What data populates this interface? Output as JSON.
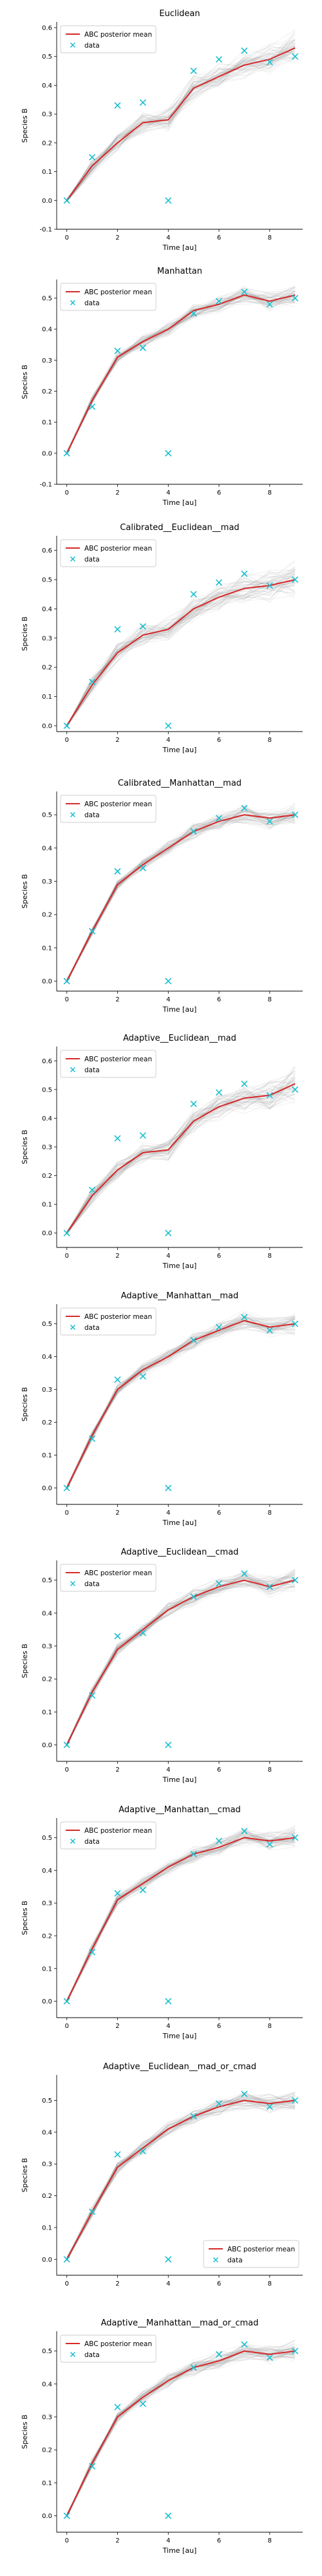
{
  "figure": {
    "background": "#ffffff",
    "colors": {
      "posterior_mean": "#d62728",
      "data": "#17becf",
      "samples": "#888888"
    }
  },
  "chart_data": [
    {
      "type": "line",
      "title": "Euclidean",
      "xlabel": "Time [au]",
      "ylabel": "Species B",
      "xlim": [
        -0.4,
        9.3
      ],
      "ylim": [
        -0.1,
        0.62
      ],
      "xticks": [
        0,
        2,
        4,
        6,
        8
      ],
      "yticks": [
        -0.1,
        0.0,
        0.1,
        0.2,
        0.3,
        0.4,
        0.5,
        0.6
      ],
      "legend": {
        "location": "upper left",
        "entries": [
          "ABC posterior mean",
          "data"
        ]
      },
      "x": [
        0,
        1,
        2,
        3,
        4,
        5,
        6,
        7,
        8,
        9
      ],
      "series": [
        {
          "name": "ABC posterior mean",
          "kind": "line",
          "values": [
            0.0,
            0.12,
            0.2,
            0.27,
            0.28,
            0.39,
            0.43,
            0.47,
            0.49,
            0.53
          ]
        },
        {
          "name": "data",
          "kind": "marker",
          "values": [
            0.0,
            0.15,
            0.33,
            0.34,
            0.0,
            0.45,
            0.49,
            0.52,
            0.48,
            0.5
          ]
        }
      ]
    },
    {
      "type": "line",
      "title": "Manhattan",
      "xlabel": "Time [au]",
      "ylabel": "Species B",
      "xlim": [
        -0.4,
        9.3
      ],
      "ylim": [
        -0.1,
        0.56
      ],
      "xticks": [
        0,
        2,
        4,
        6,
        8
      ],
      "yticks": [
        -0.1,
        0.0,
        0.1,
        0.2,
        0.3,
        0.4,
        0.5
      ],
      "legend": {
        "location": "upper left",
        "entries": [
          "ABC posterior mean",
          "data"
        ]
      },
      "x": [
        0,
        1,
        2,
        3,
        4,
        5,
        6,
        7,
        8,
        9
      ],
      "series": [
        {
          "name": "ABC posterior mean",
          "kind": "line",
          "values": [
            0.0,
            0.17,
            0.31,
            0.36,
            0.4,
            0.46,
            0.48,
            0.51,
            0.49,
            0.51
          ]
        },
        {
          "name": "data",
          "kind": "marker",
          "values": [
            0.0,
            0.15,
            0.33,
            0.34,
            0.0,
            0.45,
            0.49,
            0.52,
            0.48,
            0.5
          ]
        }
      ]
    },
    {
      "type": "line",
      "title": "Calibrated__Euclidean__mad",
      "xlabel": "Time [au]",
      "ylabel": "Species B",
      "xlim": [
        -0.4,
        9.3
      ],
      "ylim": [
        -0.02,
        0.65
      ],
      "xticks": [
        0,
        2,
        4,
        6,
        8
      ],
      "yticks": [
        0.0,
        0.1,
        0.2,
        0.3,
        0.4,
        0.5,
        0.6
      ],
      "legend": {
        "location": "upper left",
        "entries": [
          "ABC posterior mean",
          "data"
        ]
      },
      "x": [
        0,
        1,
        2,
        3,
        4,
        5,
        6,
        7,
        8,
        9
      ],
      "series": [
        {
          "name": "ABC posterior mean",
          "kind": "line",
          "values": [
            0.0,
            0.14,
            0.25,
            0.31,
            0.33,
            0.4,
            0.44,
            0.47,
            0.48,
            0.5
          ]
        },
        {
          "name": "data",
          "kind": "marker",
          "values": [
            0.0,
            0.15,
            0.33,
            0.34,
            0.0,
            0.45,
            0.49,
            0.52,
            0.48,
            0.5
          ]
        }
      ]
    },
    {
      "type": "line",
      "title": "Calibrated__Manhattan__mad",
      "xlabel": "Time [au]",
      "ylabel": "Species B",
      "xlim": [
        -0.4,
        9.3
      ],
      "ylim": [
        -0.03,
        0.57
      ],
      "xticks": [
        0,
        2,
        4,
        6,
        8
      ],
      "yticks": [
        0.0,
        0.1,
        0.2,
        0.3,
        0.4,
        0.5
      ],
      "legend": {
        "location": "upper left",
        "entries": [
          "ABC posterior mean",
          "data"
        ]
      },
      "x": [
        0,
        1,
        2,
        3,
        4,
        5,
        6,
        7,
        8,
        9
      ],
      "series": [
        {
          "name": "ABC posterior mean",
          "kind": "line",
          "values": [
            0.0,
            0.15,
            0.29,
            0.35,
            0.4,
            0.45,
            0.48,
            0.5,
            0.49,
            0.5
          ]
        },
        {
          "name": "data",
          "kind": "marker",
          "values": [
            0.0,
            0.15,
            0.33,
            0.34,
            0.0,
            0.45,
            0.49,
            0.52,
            0.48,
            0.5
          ]
        }
      ]
    },
    {
      "type": "line",
      "title": "Adaptive__Euclidean__mad",
      "xlabel": "Time [au]",
      "ylabel": "Species B",
      "xlim": [
        -0.4,
        9.3
      ],
      "ylim": [
        -0.05,
        0.65
      ],
      "xticks": [
        0,
        2,
        4,
        6,
        8
      ],
      "yticks": [
        0.0,
        0.1,
        0.2,
        0.3,
        0.4,
        0.5,
        0.6
      ],
      "legend": {
        "location": "upper left",
        "entries": [
          "ABC posterior mean",
          "data"
        ]
      },
      "x": [
        0,
        1,
        2,
        3,
        4,
        5,
        6,
        7,
        8,
        9
      ],
      "series": [
        {
          "name": "ABC posterior mean",
          "kind": "line",
          "values": [
            0.0,
            0.13,
            0.22,
            0.28,
            0.29,
            0.39,
            0.44,
            0.47,
            0.48,
            0.52
          ]
        },
        {
          "name": "data",
          "kind": "marker",
          "values": [
            0.0,
            0.15,
            0.33,
            0.34,
            0.0,
            0.45,
            0.49,
            0.52,
            0.48,
            0.5
          ]
        }
      ]
    },
    {
      "type": "line",
      "title": "Adaptive__Manhattan__mad",
      "xlabel": "Time [au]",
      "ylabel": "Species B",
      "xlim": [
        -0.4,
        9.3
      ],
      "ylim": [
        -0.05,
        0.56
      ],
      "xticks": [
        0,
        2,
        4,
        6,
        8
      ],
      "yticks": [
        0.0,
        0.1,
        0.2,
        0.3,
        0.4,
        0.5
      ],
      "legend": {
        "location": "upper left",
        "entries": [
          "ABC posterior mean",
          "data"
        ]
      },
      "x": [
        0,
        1,
        2,
        3,
        4,
        5,
        6,
        7,
        8,
        9
      ],
      "series": [
        {
          "name": "ABC posterior mean",
          "kind": "line",
          "values": [
            0.0,
            0.16,
            0.3,
            0.36,
            0.4,
            0.45,
            0.48,
            0.51,
            0.49,
            0.5
          ]
        },
        {
          "name": "data",
          "kind": "marker",
          "values": [
            0.0,
            0.15,
            0.33,
            0.34,
            0.0,
            0.45,
            0.49,
            0.52,
            0.48,
            0.5
          ]
        }
      ]
    },
    {
      "type": "line",
      "title": "Adaptive__Euclidean__cmad",
      "xlabel": "Time [au]",
      "ylabel": "Species B",
      "xlim": [
        -0.4,
        9.3
      ],
      "ylim": [
        -0.05,
        0.56
      ],
      "xticks": [
        0,
        2,
        4,
        6,
        8
      ],
      "yticks": [
        0.0,
        0.1,
        0.2,
        0.3,
        0.4,
        0.5
      ],
      "legend": {
        "location": "upper left",
        "entries": [
          "ABC posterior mean",
          "data"
        ]
      },
      "x": [
        0,
        1,
        2,
        3,
        4,
        5,
        6,
        7,
        8,
        9
      ],
      "series": [
        {
          "name": "ABC posterior mean",
          "kind": "line",
          "values": [
            0.0,
            0.16,
            0.29,
            0.35,
            0.41,
            0.45,
            0.48,
            0.5,
            0.48,
            0.5
          ]
        },
        {
          "name": "data",
          "kind": "marker",
          "values": [
            0.0,
            0.15,
            0.33,
            0.34,
            0.0,
            0.45,
            0.49,
            0.52,
            0.48,
            0.5
          ]
        }
      ]
    },
    {
      "type": "line",
      "title": "Adaptive__Manhattan__cmad",
      "xlabel": "Time [au]",
      "ylabel": "Species B",
      "xlim": [
        -0.4,
        9.3
      ],
      "ylim": [
        -0.05,
        0.56
      ],
      "xticks": [
        0,
        2,
        4,
        6,
        8
      ],
      "yticks": [
        0.0,
        0.1,
        0.2,
        0.3,
        0.4,
        0.5
      ],
      "legend": {
        "location": "upper left",
        "entries": [
          "ABC posterior mean",
          "data"
        ]
      },
      "x": [
        0,
        1,
        2,
        3,
        4,
        5,
        6,
        7,
        8,
        9
      ],
      "series": [
        {
          "name": "ABC posterior mean",
          "kind": "line",
          "values": [
            0.0,
            0.16,
            0.31,
            0.36,
            0.41,
            0.45,
            0.47,
            0.5,
            0.49,
            0.5
          ]
        },
        {
          "name": "data",
          "kind": "marker",
          "values": [
            0.0,
            0.15,
            0.33,
            0.34,
            0.0,
            0.45,
            0.49,
            0.52,
            0.48,
            0.5
          ]
        }
      ]
    },
    {
      "type": "line",
      "title": "Adaptive__Euclidean__mad_or_cmad",
      "xlabel": "",
      "ylabel": "Species B",
      "xlim": [
        -0.4,
        9.3
      ],
      "ylim": [
        -0.05,
        0.58
      ],
      "xticks": [
        0,
        2,
        4,
        6,
        8
      ],
      "yticks": [
        0.0,
        0.1,
        0.2,
        0.3,
        0.4,
        0.5
      ],
      "legend": {
        "location": "lower right",
        "entries": [
          "ABC posterior mean",
          "data"
        ]
      },
      "x": [
        0,
        1,
        2,
        3,
        4,
        5,
        6,
        7,
        8,
        9
      ],
      "series": [
        {
          "name": "ABC posterior mean",
          "kind": "line",
          "values": [
            0.0,
            0.15,
            0.29,
            0.35,
            0.41,
            0.45,
            0.48,
            0.5,
            0.49,
            0.5
          ]
        },
        {
          "name": "data",
          "kind": "marker",
          "values": [
            0.0,
            0.15,
            0.33,
            0.34,
            0.0,
            0.45,
            0.49,
            0.52,
            0.48,
            0.5
          ]
        }
      ]
    },
    {
      "type": "line",
      "title": "Adaptive__Manhattan__mad_or_cmad",
      "xlabel": "Time [au]",
      "ylabel": "Species B",
      "xlim": [
        -0.4,
        9.3
      ],
      "ylim": [
        -0.05,
        0.56
      ],
      "xticks": [
        0,
        2,
        4,
        6,
        8
      ],
      "yticks": [
        0.0,
        0.1,
        0.2,
        0.3,
        0.4,
        0.5
      ],
      "legend": {
        "location": "upper left",
        "entries": [
          "ABC posterior mean",
          "data"
        ]
      },
      "x": [
        0,
        1,
        2,
        3,
        4,
        5,
        6,
        7,
        8,
        9
      ],
      "series": [
        {
          "name": "ABC posterior mean",
          "kind": "line",
          "values": [
            0.0,
            0.16,
            0.3,
            0.36,
            0.41,
            0.45,
            0.47,
            0.5,
            0.49,
            0.5
          ]
        },
        {
          "name": "data",
          "kind": "marker",
          "values": [
            0.0,
            0.15,
            0.33,
            0.34,
            0.0,
            0.45,
            0.49,
            0.52,
            0.48,
            0.5
          ]
        }
      ]
    }
  ]
}
